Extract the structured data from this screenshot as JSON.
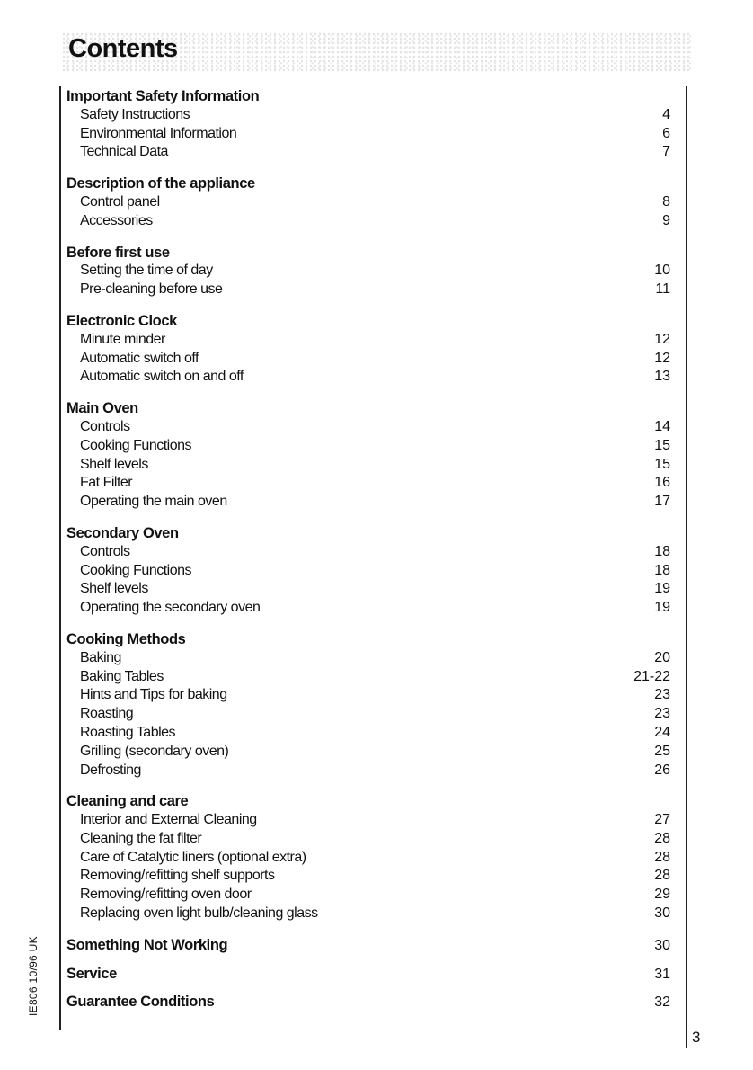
{
  "title": "Contents",
  "page_number": "3",
  "side_code": "IE806 10/96  UK",
  "sections": [
    {
      "title": "Important Safety Information",
      "items": [
        {
          "label": "Safety Instructions",
          "page": "4"
        },
        {
          "label": "Environmental Information",
          "page": "6"
        },
        {
          "label": "Technical Data",
          "page": "7"
        }
      ]
    },
    {
      "title": "Description of the appliance",
      "items": [
        {
          "label": "Control panel",
          "page": "8"
        },
        {
          "label": "Accessories",
          "page": "9"
        }
      ]
    },
    {
      "title": "Before first use",
      "items": [
        {
          "label": "Setting the time of day",
          "page": "10"
        },
        {
          "label": "Pre-cleaning before use",
          "page": "11"
        }
      ]
    },
    {
      "title": "Electronic Clock",
      "items": [
        {
          "label": "Minute minder",
          "page": "12"
        },
        {
          "label": "Automatic switch off",
          "page": "12"
        },
        {
          "label": "Automatic switch on and off",
          "page": "13"
        }
      ]
    },
    {
      "title": "Main Oven",
      "items": [
        {
          "label": "Controls",
          "page": "14"
        },
        {
          "label": "Cooking Functions",
          "page": "15"
        },
        {
          "label": "Shelf levels",
          "page": "15"
        },
        {
          "label": "Fat Filter",
          "page": "16"
        },
        {
          "label": "Operating the main oven",
          "page": "17"
        }
      ]
    },
    {
      "title": "Secondary Oven",
      "items": [
        {
          "label": "Controls",
          "page": "18"
        },
        {
          "label": "Cooking Functions",
          "page": "18"
        },
        {
          "label": "Shelf levels",
          "page": "19"
        },
        {
          "label": "Operating the secondary oven",
          "page": "19"
        }
      ]
    },
    {
      "title": "Cooking Methods",
      "items": [
        {
          "label": "Baking",
          "page": "20"
        },
        {
          "label": "Baking Tables",
          "page": "21-22"
        },
        {
          "label": "Hints and Tips for baking",
          "page": "23"
        },
        {
          "label": "Roasting",
          "page": "23"
        },
        {
          "label": "Roasting Tables",
          "page": "24"
        },
        {
          "label": "Grilling (secondary oven)",
          "page": "25"
        },
        {
          "label": "Defrosting",
          "page": "26"
        }
      ]
    },
    {
      "title": "Cleaning and care",
      "items": [
        {
          "label": "Interior and External Cleaning",
          "page": "27"
        },
        {
          "label": "Cleaning the fat filter",
          "page": "28"
        },
        {
          "label": "Care of Catalytic liners (optional extra)",
          "page": "28"
        },
        {
          "label": "Removing/refitting shelf supports",
          "page": "28"
        },
        {
          "label": "Removing/refitting oven door",
          "page": "29"
        },
        {
          "label": "Replacing oven light bulb/cleaning glass",
          "page": "30"
        }
      ]
    },
    {
      "title": "Something Not Working",
      "page": "30",
      "items": []
    },
    {
      "title": "Service",
      "page": "31",
      "items": []
    },
    {
      "title": "Guarantee Conditions",
      "page": "32",
      "items": []
    }
  ]
}
